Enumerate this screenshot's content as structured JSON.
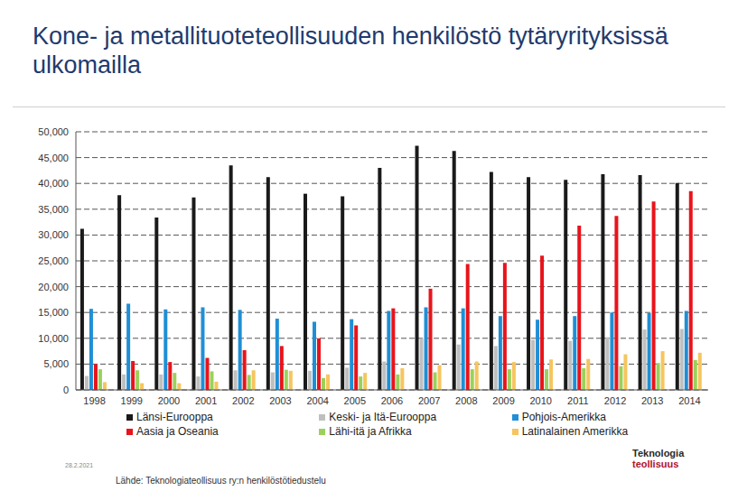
{
  "chart_data": {
    "type": "bar",
    "title": "Kone- ja metallituoteteollisuuden henkilöstö tytäryrityksissä ulkomailla",
    "categories": [
      "1998",
      "1999",
      "2000",
      "2001",
      "2002",
      "2003",
      "2004",
      "2005",
      "2006",
      "2007",
      "2008",
      "2009",
      "2010",
      "2011",
      "2012",
      "2013",
      "2014"
    ],
    "series": [
      {
        "name": "Länsi-Eurooppa",
        "color": "#1a1a1a",
        "values": [
          31200,
          37700,
          33400,
          37300,
          43500,
          41200,
          38000,
          37500,
          43000,
          47300,
          46300,
          42200,
          41200,
          40700,
          41800,
          41600,
          40100
        ]
      },
      {
        "name": "Keski- ja Itä-Eurooppa",
        "color": "#bfbfbf",
        "values": [
          2700,
          3000,
          3000,
          2600,
          3800,
          3400,
          3700,
          4300,
          5500,
          10000,
          8800,
          8500,
          9700,
          9500,
          10200,
          11700,
          11800
        ]
      },
      {
        "name": "Pohjois-Amerikka",
        "color": "#1f8fd6",
        "values": [
          15700,
          16700,
          15600,
          16000,
          15500,
          13800,
          13200,
          13700,
          15300,
          16000,
          15800,
          14300,
          13600,
          14300,
          15000,
          14900,
          15300
        ]
      },
      {
        "name": "Aasia ja Oseania",
        "color": "#e8141b",
        "values": [
          5000,
          5600,
          5400,
          6200,
          7700,
          8500,
          10000,
          12500,
          15800,
          19600,
          24400,
          24600,
          26000,
          31800,
          33700,
          36500,
          38500
        ]
      },
      {
        "name": "Lähi-itä ja Afrikka",
        "color": "#9bd15b",
        "values": [
          4000,
          3800,
          3300,
          3600,
          2900,
          3900,
          2300,
          2600,
          3000,
          3400,
          4000,
          4000,
          4000,
          4200,
          4600,
          5200,
          5800
        ]
      },
      {
        "name": "Latinalainen Amerikka",
        "color": "#f6c55e",
        "values": [
          1500,
          1300,
          1300,
          1600,
          3800,
          3700,
          3000,
          3300,
          4200,
          4800,
          5500,
          5400,
          5900,
          6000,
          6900,
          7500,
          7200
        ]
      }
    ],
    "ylim": [
      0,
      50000
    ],
    "yticks": [
      0,
      {
        "value": 5000,
        "label": "5,000"
      },
      {
        "value": 10000,
        "label": "10,000"
      },
      {
        "value": 15000,
        "label": "15,000"
      },
      {
        "value": 20000,
        "label": "20,000"
      },
      {
        "value": 25000,
        "label": "25,000"
      },
      {
        "value": 30000,
        "label": "30,000"
      },
      {
        "value": 35000,
        "label": "35,000"
      },
      {
        "value": 40000,
        "label": "40,000"
      },
      {
        "value": 45000,
        "label": "45,000"
      },
      {
        "value": 50000,
        "label": "50,000"
      }
    ],
    "grid": true,
    "legend": "bottom",
    "source": "Lähde: Teknologiateollisuus ry:n henkilöstötiedustelu",
    "date": "28.2.2021",
    "logo": [
      "Teknologia",
      "teollisuus"
    ]
  }
}
